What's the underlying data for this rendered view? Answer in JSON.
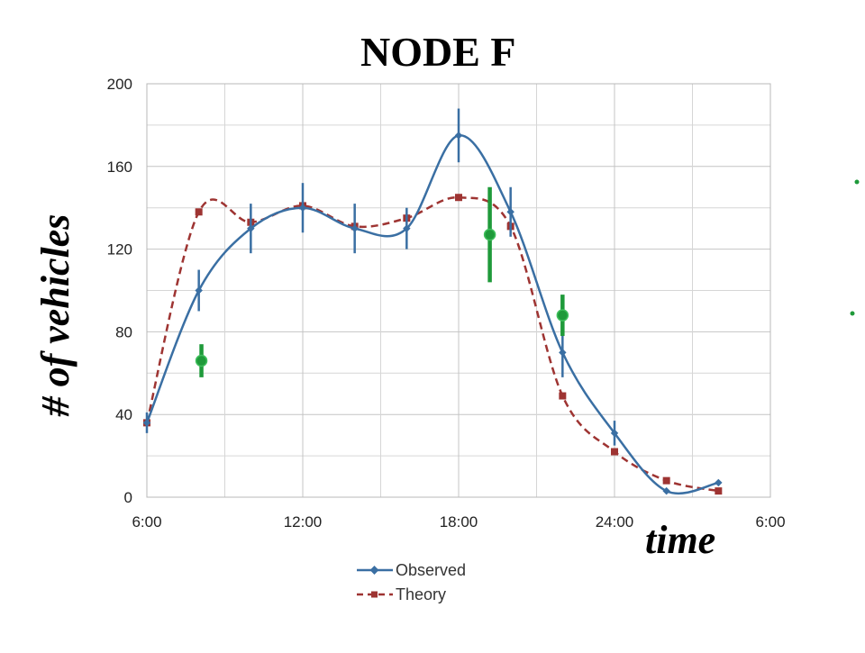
{
  "chart_data": {
    "type": "line",
    "title": "NODE F",
    "xlabel": "time",
    "ylabel": "# of vehicles",
    "x_ticks": [
      "6:00",
      "12:00",
      "18:00",
      "24:00",
      "6:00"
    ],
    "y_ticks": [
      "0",
      "40",
      "80",
      "120",
      "160",
      "200"
    ],
    "xlim": [
      6,
      30
    ],
    "ylim": [
      0,
      200
    ],
    "grid": true,
    "legend_position": "bottom-center",
    "series": [
      {
        "name": "Observed",
        "color": "#3a6fa3",
        "style": "solid",
        "marker": "diamond",
        "x": [
          6,
          8,
          10,
          12,
          14,
          16,
          18,
          20,
          22,
          24,
          26,
          28
        ],
        "y": [
          36,
          100,
          130,
          140,
          130,
          130,
          175,
          138,
          70,
          31,
          3,
          7
        ],
        "error": [
          5,
          10,
          12,
          12,
          12,
          10,
          13,
          12,
          12,
          6,
          0,
          0
        ]
      },
      {
        "name": "Theory",
        "color": "#9e3432",
        "style": "dashed",
        "marker": "square",
        "x": [
          6,
          8,
          10,
          12,
          14,
          16,
          18,
          20,
          22,
          24,
          26,
          28
        ],
        "y": [
          36,
          138,
          133,
          141,
          131,
          135,
          145,
          131,
          49,
          22,
          8,
          3
        ]
      },
      {
        "color": "#1f9a3a",
        "marker": "circle",
        "x": [
          8.1,
          19.2,
          22.0
        ],
        "y": [
          66,
          127,
          88
        ],
        "error": [
          8,
          23,
          10
        ]
      }
    ]
  }
}
